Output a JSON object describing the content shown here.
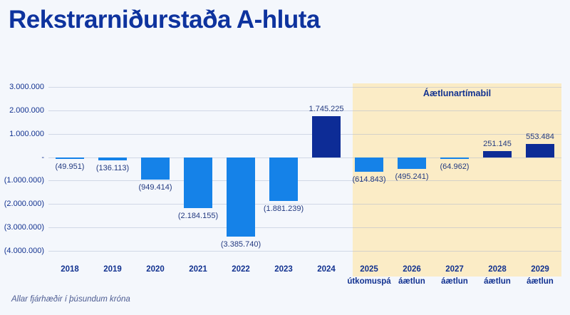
{
  "page": {
    "title": "Rekstrarniðurstaða A-hluta",
    "footnote": "Allar fjárhæðir í þúsundum króna"
  },
  "colors": {
    "background": "#f4f7fc",
    "title": "#0e339e",
    "axis_label": "#123290",
    "data_label": "#233a80",
    "bar_negative": "#1582e8",
    "bar_positive": "#0d2c96",
    "highlight_region": "#fbecc6",
    "gridline": "#a5b2cd",
    "footnote": "#4d5c92"
  },
  "chart_data": {
    "type": "bar",
    "title": "Rekstrarniðurstaða A-hluta",
    "xlabel": "",
    "ylabel": "",
    "unit_note": "Allar fjárhæðir í þúsundum króna",
    "grid": true,
    "legend": false,
    "ylim": [
      -4000000,
      3000000
    ],
    "yticks": [
      {
        "value": 3000000,
        "label": "3.000.000"
      },
      {
        "value": 2000000,
        "label": "2.000.000"
      },
      {
        "value": 1000000,
        "label": "1.000.000"
      },
      {
        "value": 0,
        "label": "-"
      },
      {
        "value": -1000000,
        "label": "(1.000.000)"
      },
      {
        "value": -2000000,
        "label": "(2.000.000)"
      },
      {
        "value": -3000000,
        "label": "(3.000.000)"
      },
      {
        "value": -4000000,
        "label": "(4.000.000)"
      }
    ],
    "highlight_region": {
      "label": "Áætlunartímabil",
      "start_category": "2025",
      "end_category": "2029"
    },
    "points": [
      {
        "category": "2018",
        "sublabel": "",
        "value": -49951,
        "label": "(49.951)",
        "in_plan": false
      },
      {
        "category": "2019",
        "sublabel": "",
        "value": -136113,
        "label": "(136.113)",
        "in_plan": false
      },
      {
        "category": "2020",
        "sublabel": "",
        "value": -949414,
        "label": "(949.414)",
        "in_plan": false
      },
      {
        "category": "2021",
        "sublabel": "",
        "value": -2184155,
        "label": "(2.184.155)",
        "in_plan": false
      },
      {
        "category": "2022",
        "sublabel": "",
        "value": -3385740,
        "label": "(3.385.740)",
        "in_plan": false
      },
      {
        "category": "2023",
        "sublabel": "",
        "value": -1881239,
        "label": "(1.881.239)",
        "in_plan": false
      },
      {
        "category": "2024",
        "sublabel": "",
        "value": 1745225,
        "label": "1.745.225",
        "in_plan": false
      },
      {
        "category": "2025",
        "sublabel": "útkomuspá",
        "value": -614843,
        "label": "(614.843)",
        "in_plan": true
      },
      {
        "category": "2026",
        "sublabel": "áætlun",
        "value": -495241,
        "label": "(495.241)",
        "in_plan": true
      },
      {
        "category": "2027",
        "sublabel": "áætlun",
        "value": -64962,
        "label": "(64.962)",
        "in_plan": true
      },
      {
        "category": "2028",
        "sublabel": "áætlun",
        "value": 251145,
        "label": "251.145",
        "in_plan": true
      },
      {
        "category": "2029",
        "sublabel": "áætlun",
        "value": 553484,
        "label": "553.484",
        "in_plan": true
      }
    ]
  }
}
